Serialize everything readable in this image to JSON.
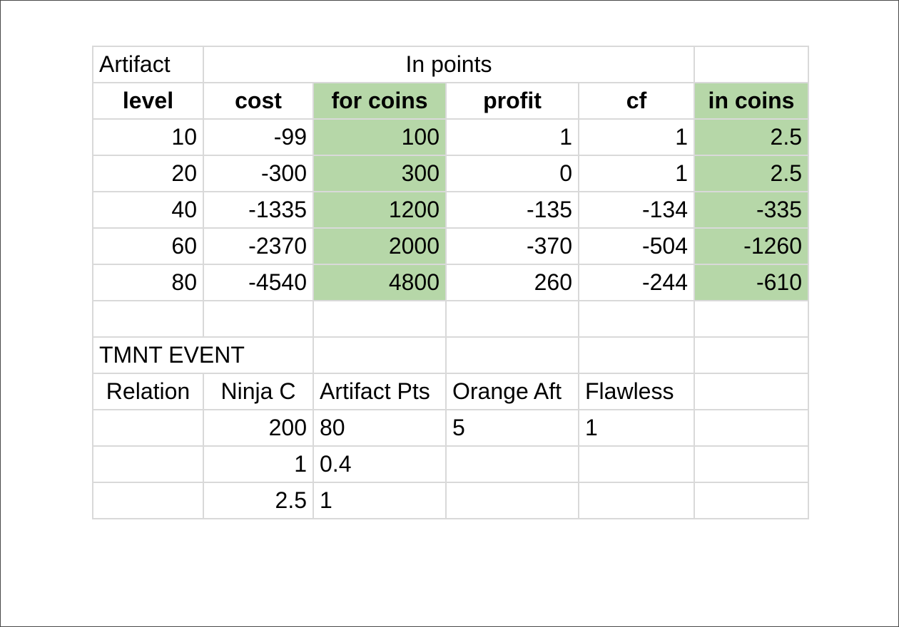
{
  "top_table": {
    "title_cell": "Artifact",
    "group_header": "In points",
    "headers": [
      "level",
      "cost",
      "for coins",
      "profit",
      "cf",
      "in coins"
    ],
    "rows": [
      [
        "10",
        "-99",
        "100",
        "1",
        "1",
        "2.5"
      ],
      [
        "20",
        "-300",
        "300",
        "0",
        "1",
        "2.5"
      ],
      [
        "40",
        "-1335",
        "1200",
        "-135",
        "-134",
        "-335"
      ],
      [
        "60",
        "-2370",
        "2000",
        "-370",
        "-504",
        "-1260"
      ],
      [
        "80",
        "-4540",
        "4800",
        "260",
        "-244",
        "-610"
      ]
    ]
  },
  "event_table": {
    "title": "TMNT EVENT",
    "headers": [
      "Relation",
      "Ninja C",
      "Artifact Pts",
      "Orange Aft",
      "Flawless"
    ],
    "rows": [
      [
        "",
        "200",
        "80",
        "5",
        "1"
      ],
      [
        "",
        "1",
        "0.4",
        "",
        ""
      ],
      [
        "",
        "2.5",
        "1",
        "",
        ""
      ]
    ]
  },
  "colors": {
    "highlight": "#b6d7a8",
    "highlight_border": "#93c47d",
    "grid": "#d9d9d9"
  }
}
